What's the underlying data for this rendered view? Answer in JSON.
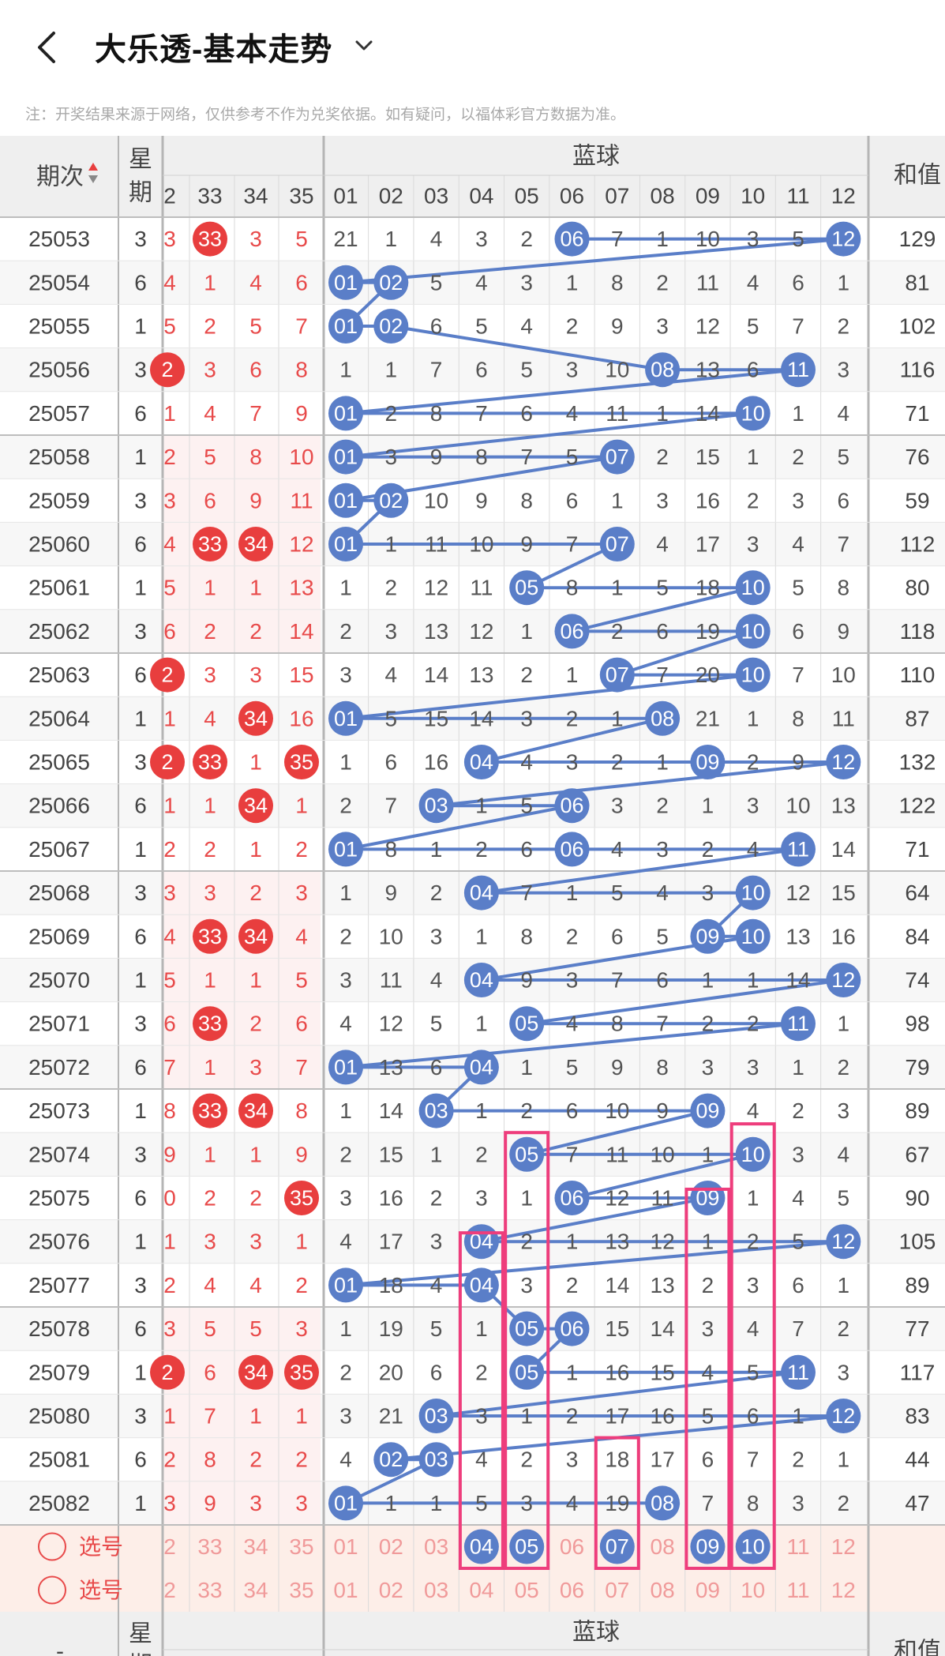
{
  "header": {
    "title": "大乐透-基本走势",
    "notice": "注：开奖结果来源于网络，仅供参考不作为兑奖依据。如有疑问，以福体彩官方数据为准。"
  },
  "table": {
    "col_period": "期次",
    "col_weekday": "星期",
    "group_blue": "蓝球",
    "col_sum": "和值",
    "red_visible_headers": [
      "2",
      "33",
      "34",
      "35"
    ],
    "blue_headers": [
      "01",
      "02",
      "03",
      "04",
      "05",
      "06",
      "07",
      "08",
      "09",
      "10",
      "11",
      "12"
    ],
    "rows": [
      {
        "p": "25053",
        "w": "3",
        "red": [
          "3",
          "33",
          "3",
          "5"
        ],
        "rh": [
          false,
          true,
          false,
          false
        ],
        "blue": [
          "21",
          "1",
          "4",
          "3",
          "2",
          "06",
          "7",
          "1",
          "10",
          "3",
          "5",
          "12"
        ],
        "sum": "129"
      },
      {
        "p": "25054",
        "w": "6",
        "red": [
          "4",
          "1",
          "4",
          "6"
        ],
        "rh": [
          false,
          false,
          false,
          false
        ],
        "blue": [
          "01",
          "02",
          "5",
          "4",
          "3",
          "1",
          "8",
          "2",
          "11",
          "4",
          "6",
          "1"
        ],
        "sum": "81"
      },
      {
        "p": "25055",
        "w": "1",
        "red": [
          "5",
          "2",
          "5",
          "7"
        ],
        "rh": [
          false,
          false,
          false,
          false
        ],
        "blue": [
          "01",
          "02",
          "6",
          "5",
          "4",
          "2",
          "9",
          "3",
          "12",
          "5",
          "7",
          "2"
        ],
        "sum": "102"
      },
      {
        "p": "25056",
        "w": "3",
        "red": [
          "2",
          "3",
          "6",
          "8"
        ],
        "rh": [
          true,
          false,
          false,
          false
        ],
        "blue": [
          "1",
          "1",
          "7",
          "6",
          "5",
          "3",
          "10",
          "08",
          "13",
          "6",
          "11",
          "3"
        ],
        "sum": "116"
      },
      {
        "p": "25057",
        "w": "6",
        "red": [
          "1",
          "4",
          "7",
          "9"
        ],
        "rh": [
          false,
          false,
          false,
          false
        ],
        "blue": [
          "01",
          "2",
          "8",
          "7",
          "6",
          "4",
          "11",
          "1",
          "14",
          "10",
          "1",
          "4"
        ],
        "sum": "71"
      },
      {
        "p": "25058",
        "w": "1",
        "red": [
          "2",
          "5",
          "8",
          "10"
        ],
        "rh": [
          false,
          false,
          false,
          false
        ],
        "blue": [
          "01",
          "3",
          "9",
          "8",
          "7",
          "5",
          "07",
          "2",
          "15",
          "1",
          "2",
          "5"
        ],
        "sum": "76"
      },
      {
        "p": "25059",
        "w": "3",
        "red": [
          "3",
          "6",
          "9",
          "11"
        ],
        "rh": [
          false,
          false,
          false,
          false
        ],
        "blue": [
          "01",
          "02",
          "10",
          "9",
          "8",
          "6",
          "1",
          "3",
          "16",
          "2",
          "3",
          "6"
        ],
        "sum": "59"
      },
      {
        "p": "25060",
        "w": "6",
        "red": [
          "4",
          "33",
          "34",
          "12"
        ],
        "rh": [
          false,
          true,
          true,
          false
        ],
        "blue": [
          "01",
          "1",
          "11",
          "10",
          "9",
          "7",
          "07",
          "4",
          "17",
          "3",
          "4",
          "7"
        ],
        "sum": "112"
      },
      {
        "p": "25061",
        "w": "1",
        "red": [
          "5",
          "1",
          "1",
          "13"
        ],
        "rh": [
          false,
          false,
          false,
          false
        ],
        "blue": [
          "1",
          "2",
          "12",
          "11",
          "05",
          "8",
          "1",
          "5",
          "18",
          "10",
          "5",
          "8"
        ],
        "sum": "80"
      },
      {
        "p": "25062",
        "w": "3",
        "red": [
          "6",
          "2",
          "2",
          "14"
        ],
        "rh": [
          false,
          false,
          false,
          false
        ],
        "blue": [
          "2",
          "3",
          "13",
          "12",
          "1",
          "06",
          "2",
          "6",
          "19",
          "10",
          "6",
          "9"
        ],
        "sum": "118"
      },
      {
        "p": "25063",
        "w": "6",
        "red": [
          "2",
          "3",
          "3",
          "15"
        ],
        "rh": [
          true,
          false,
          false,
          false
        ],
        "blue": [
          "3",
          "4",
          "14",
          "13",
          "2",
          "1",
          "07",
          "7",
          "20",
          "10",
          "7",
          "10"
        ],
        "sum": "110"
      },
      {
        "p": "25064",
        "w": "1",
        "red": [
          "1",
          "4",
          "34",
          "16"
        ],
        "rh": [
          false,
          false,
          true,
          false
        ],
        "blue": [
          "01",
          "5",
          "15",
          "14",
          "3",
          "2",
          "1",
          "08",
          "21",
          "1",
          "8",
          "11"
        ],
        "sum": "87"
      },
      {
        "p": "25065",
        "w": "3",
        "red": [
          "2",
          "33",
          "1",
          "35"
        ],
        "rh": [
          true,
          true,
          false,
          true
        ],
        "blue": [
          "1",
          "6",
          "16",
          "04",
          "4",
          "3",
          "2",
          "1",
          "09",
          "2",
          "9",
          "12"
        ],
        "sum": "132"
      },
      {
        "p": "25066",
        "w": "6",
        "red": [
          "1",
          "1",
          "34",
          "1"
        ],
        "rh": [
          false,
          false,
          true,
          false
        ],
        "blue": [
          "2",
          "7",
          "03",
          "1",
          "5",
          "06",
          "3",
          "2",
          "1",
          "3",
          "10",
          "13"
        ],
        "sum": "122"
      },
      {
        "p": "25067",
        "w": "1",
        "red": [
          "2",
          "2",
          "1",
          "2"
        ],
        "rh": [
          false,
          false,
          false,
          false
        ],
        "blue": [
          "01",
          "8",
          "1",
          "2",
          "6",
          "06",
          "4",
          "3",
          "2",
          "4",
          "11",
          "14"
        ],
        "sum": "71"
      },
      {
        "p": "25068",
        "w": "3",
        "red": [
          "3",
          "3",
          "2",
          "3"
        ],
        "rh": [
          false,
          false,
          false,
          false
        ],
        "blue": [
          "1",
          "9",
          "2",
          "04",
          "7",
          "1",
          "5",
          "4",
          "3",
          "10",
          "12",
          "15"
        ],
        "sum": "64"
      },
      {
        "p": "25069",
        "w": "6",
        "red": [
          "4",
          "33",
          "34",
          "4"
        ],
        "rh": [
          false,
          true,
          true,
          false
        ],
        "blue": [
          "2",
          "10",
          "3",
          "1",
          "8",
          "2",
          "6",
          "5",
          "09",
          "10",
          "13",
          "16"
        ],
        "sum": "84"
      },
      {
        "p": "25070",
        "w": "1",
        "red": [
          "5",
          "1",
          "1",
          "5"
        ],
        "rh": [
          false,
          false,
          false,
          false
        ],
        "blue": [
          "3",
          "11",
          "4",
          "04",
          "9",
          "3",
          "7",
          "6",
          "1",
          "1",
          "14",
          "12"
        ],
        "sum": "74"
      },
      {
        "p": "25071",
        "w": "3",
        "red": [
          "6",
          "33",
          "2",
          "6"
        ],
        "rh": [
          false,
          true,
          false,
          false
        ],
        "blue": [
          "4",
          "12",
          "5",
          "1",
          "05",
          "4",
          "8",
          "7",
          "2",
          "2",
          "11",
          "1"
        ],
        "sum": "98"
      },
      {
        "p": "25072",
        "w": "6",
        "red": [
          "7",
          "1",
          "3",
          "7"
        ],
        "rh": [
          false,
          false,
          false,
          false
        ],
        "blue": [
          "01",
          "13",
          "6",
          "04",
          "1",
          "5",
          "9",
          "8",
          "3",
          "3",
          "1",
          "2"
        ],
        "sum": "79"
      },
      {
        "p": "25073",
        "w": "1",
        "red": [
          "8",
          "33",
          "34",
          "8"
        ],
        "rh": [
          false,
          true,
          true,
          false
        ],
        "blue": [
          "1",
          "14",
          "03",
          "1",
          "2",
          "6",
          "10",
          "9",
          "09",
          "4",
          "2",
          "3"
        ],
        "sum": "89"
      },
      {
        "p": "25074",
        "w": "3",
        "red": [
          "9",
          "1",
          "1",
          "9"
        ],
        "rh": [
          false,
          false,
          false,
          false
        ],
        "blue": [
          "2",
          "15",
          "1",
          "2",
          "05",
          "7",
          "11",
          "10",
          "1",
          "10",
          "3",
          "4"
        ],
        "sum": "67"
      },
      {
        "p": "25075",
        "w": "6",
        "red": [
          "0",
          "2",
          "2",
          "35"
        ],
        "rh": [
          false,
          false,
          false,
          true
        ],
        "blue": [
          "3",
          "16",
          "2",
          "3",
          "1",
          "06",
          "12",
          "11",
          "09",
          "1",
          "4",
          "5"
        ],
        "sum": "90"
      },
      {
        "p": "25076",
        "w": "1",
        "red": [
          "1",
          "3",
          "3",
          "1"
        ],
        "rh": [
          false,
          false,
          false,
          false
        ],
        "blue": [
          "4",
          "17",
          "3",
          "04",
          "2",
          "1",
          "13",
          "12",
          "1",
          "2",
          "5",
          "12"
        ],
        "sum": "105"
      },
      {
        "p": "25077",
        "w": "3",
        "red": [
          "2",
          "4",
          "4",
          "2"
        ],
        "rh": [
          false,
          false,
          false,
          false
        ],
        "blue": [
          "01",
          "18",
          "4",
          "04",
          "3",
          "2",
          "14",
          "13",
          "2",
          "3",
          "6",
          "1"
        ],
        "sum": "89"
      },
      {
        "p": "25078",
        "w": "6",
        "red": [
          "3",
          "5",
          "5",
          "3"
        ],
        "rh": [
          false,
          false,
          false,
          false
        ],
        "blue": [
          "1",
          "19",
          "5",
          "1",
          "05",
          "06",
          "15",
          "14",
          "3",
          "4",
          "7",
          "2"
        ],
        "sum": "77"
      },
      {
        "p": "25079",
        "w": "1",
        "red": [
          "2",
          "6",
          "34",
          "35"
        ],
        "rh": [
          true,
          false,
          true,
          true
        ],
        "blue": [
          "2",
          "20",
          "6",
          "2",
          "05",
          "1",
          "16",
          "15",
          "4",
          "5",
          "11",
          "3"
        ],
        "sum": "117"
      },
      {
        "p": "25080",
        "w": "3",
        "red": [
          "1",
          "7",
          "1",
          "1"
        ],
        "rh": [
          false,
          false,
          false,
          false
        ],
        "blue": [
          "3",
          "21",
          "03",
          "3",
          "1",
          "2",
          "17",
          "16",
          "5",
          "6",
          "1",
          "12"
        ],
        "sum": "83"
      },
      {
        "p": "25081",
        "w": "6",
        "red": [
          "2",
          "8",
          "2",
          "2"
        ],
        "rh": [
          false,
          false,
          false,
          false
        ],
        "blue": [
          "4",
          "02",
          "03",
          "4",
          "2",
          "3",
          "18",
          "17",
          "6",
          "7",
          "2",
          "1"
        ],
        "sum": "44"
      },
      {
        "p": "25082",
        "w": "1",
        "red": [
          "3",
          "9",
          "3",
          "3"
        ],
        "rh": [
          false,
          false,
          false,
          false
        ],
        "blue": [
          "01",
          "1",
          "1",
          "5",
          "3",
          "4",
          "19",
          "08",
          "7",
          "8",
          "3",
          "2"
        ],
        "sum": "47"
      }
    ],
    "select_rows": [
      {
        "label": "选号",
        "red": [
          "2",
          "33",
          "34",
          "35"
        ],
        "blue": [
          "01",
          "02",
          "03",
          "04",
          "05",
          "06",
          "07",
          "08",
          "09",
          "10",
          "11",
          "12"
        ],
        "selected_blue": [
          "04",
          "05",
          "07",
          "09",
          "10"
        ]
      },
      {
        "label": "选号",
        "red": [
          "2",
          "33",
          "34",
          "35"
        ],
        "blue": [
          "01",
          "02",
          "03",
          "04",
          "05",
          "06",
          "07",
          "08",
          "09",
          "10",
          "11",
          "12"
        ],
        "selected_blue": []
      }
    ],
    "footer_period": "-",
    "colors": {
      "blue_ball": "#5a7ec8",
      "red_ball": "#e83e3e",
      "red_text": "#e84a4a",
      "pink_frame": "#ee3d7c",
      "select_bg": "#fdeee8",
      "header_bg": "#efefef"
    }
  }
}
